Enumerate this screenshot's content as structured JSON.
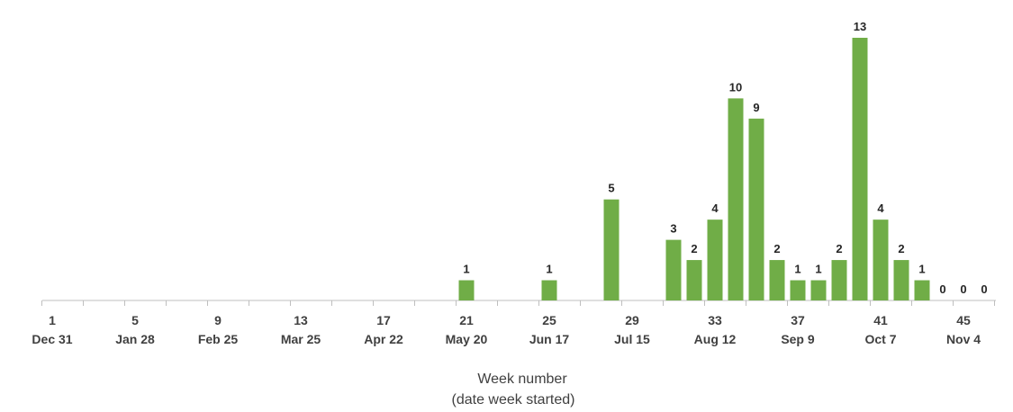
{
  "chart_data": {
    "type": "bar",
    "title": "",
    "xlabel": "Week number",
    "xlabel_sub": "(date week started)",
    "ylabel": "",
    "ylim": [
      0,
      13
    ],
    "grid": false,
    "legend": "none",
    "bar_color": "#70AD47",
    "axis_color": "#BFBFBF",
    "tick_label_color": "#404040",
    "value_label_color": "#262626",
    "x_range": [
      1,
      46
    ],
    "x": [
      21,
      25,
      28,
      31,
      32,
      33,
      34,
      35,
      36,
      37,
      38,
      39,
      40,
      41,
      42,
      43,
      44,
      45,
      46
    ],
    "values": [
      1,
      1,
      5,
      3,
      2,
      4,
      10,
      9,
      2,
      1,
      1,
      2,
      13,
      4,
      2,
      1,
      0,
      0,
      0
    ],
    "value_labels": [
      "1",
      "1",
      "5",
      "3",
      "2",
      "4",
      "10",
      "9",
      "2",
      "1",
      "1",
      "2",
      "13",
      "4",
      "2",
      "1",
      "0",
      "0",
      "0"
    ],
    "x_ticks": [
      {
        "week": 1,
        "week_label": "1",
        "date_label": "Dec 31"
      },
      {
        "week": 5,
        "week_label": "5",
        "date_label": "Jan 28"
      },
      {
        "week": 9,
        "week_label": "9",
        "date_label": "Feb 25"
      },
      {
        "week": 13,
        "week_label": "13",
        "date_label": "Mar 25"
      },
      {
        "week": 17,
        "week_label": "17",
        "date_label": "Apr 22"
      },
      {
        "week": 21,
        "week_label": "21",
        "date_label": "May 20"
      },
      {
        "week": 25,
        "week_label": "25",
        "date_label": "Jun 17"
      },
      {
        "week": 29,
        "week_label": "29",
        "date_label": "Jul 15"
      },
      {
        "week": 33,
        "week_label": "33",
        "date_label": "Aug 12"
      },
      {
        "week": 37,
        "week_label": "37",
        "date_label": "Sep 9"
      },
      {
        "week": 41,
        "week_label": "41",
        "date_label": "Oct 7"
      },
      {
        "week": 45,
        "week_label": "45",
        "date_label": "Nov 4"
      }
    ]
  }
}
